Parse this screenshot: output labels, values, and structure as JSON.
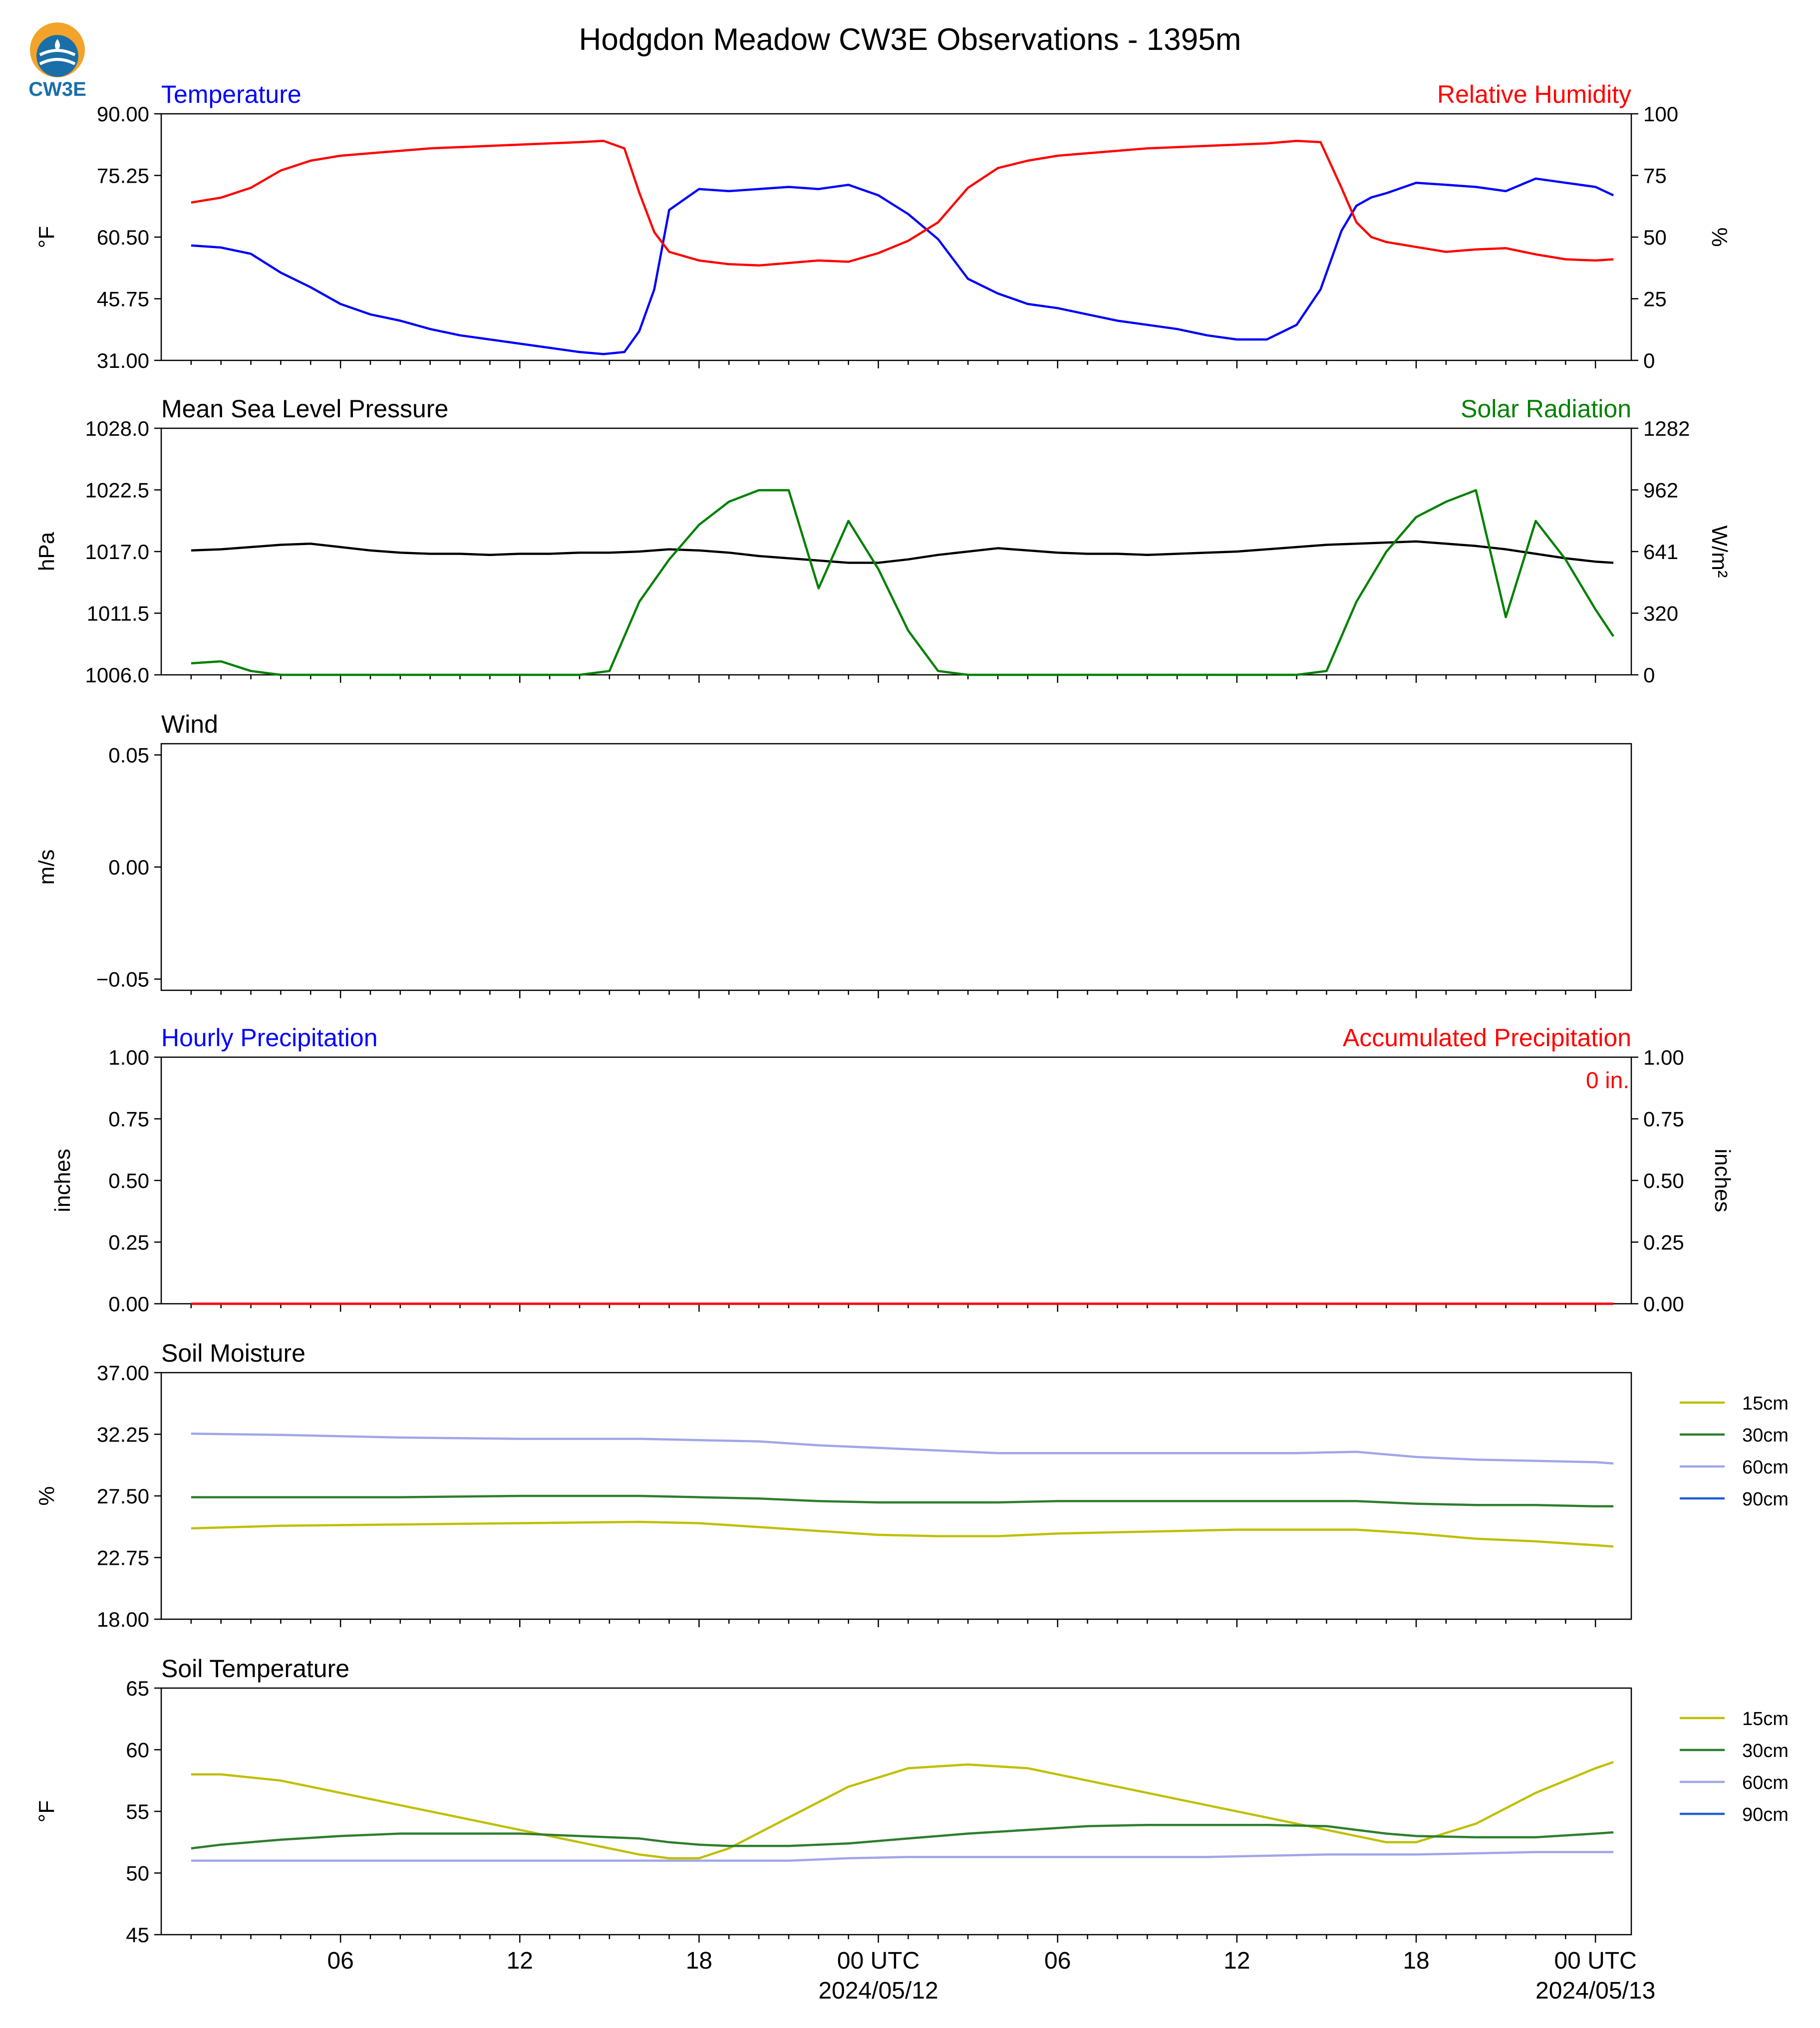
{
  "figure": {
    "title": "Hodgdon Meadow CW3E Observations - 1395m",
    "logo_text": "CW3E",
    "time_ticks": [
      "06",
      "12",
      "18",
      "00 UTC",
      "06",
      "12",
      "18",
      "00 UTC"
    ],
    "date_labels": [
      "2024/05/12",
      "2024/05/13"
    ]
  },
  "colors": {
    "temperature": "#0000ff",
    "humidity": "#ff0000",
    "pressure": "#000000",
    "solar": "#008000",
    "soil_15cm": "#bfbf00",
    "soil_30cm": "#2e7d2e",
    "soil_60cm": "#a0a6e6",
    "soil_90cm": "#1f5fd6"
  },
  "chart_data": [
    {
      "type": "line",
      "left_title": "Temperature",
      "right_title": "Relative Humidity",
      "ylabel": "°F",
      "ylabel_right": "%",
      "ylim": [
        31,
        90
      ],
      "ylim_right": [
        0,
        100
      ],
      "yticks": [
        "90.00",
        "75.25",
        "60.50",
        "45.75",
        "31.00"
      ],
      "yticks_right": [
        "100",
        "75",
        "50",
        "25",
        "0"
      ],
      "x_hours": [
        1,
        2,
        3,
        4,
        5,
        6,
        7,
        8,
        9,
        10,
        11,
        12,
        13,
        14,
        14.8,
        15.5,
        16,
        16.5,
        17,
        18,
        19,
        20,
        21,
        22,
        23,
        24,
        25,
        26,
        27,
        28,
        29,
        30,
        31,
        32,
        33,
        34,
        35,
        36,
        37,
        38,
        38.8,
        39.5,
        40,
        40.5,
        41,
        42,
        43,
        44,
        45,
        46,
        47,
        48,
        48.6
      ],
      "series": [
        {
          "name": "Temperature",
          "axis": "left",
          "values": [
            58.5,
            58,
            56.5,
            52,
            48.5,
            44.5,
            42,
            40.5,
            38.5,
            37,
            36,
            35,
            34,
            33,
            32.5,
            33,
            38,
            48,
            67,
            72,
            71.5,
            72,
            72.5,
            72,
            73,
            70.5,
            66,
            60,
            50.5,
            47,
            44.5,
            43.5,
            42,
            40.5,
            39.5,
            38.5,
            37,
            36,
            36,
            39.5,
            48,
            62,
            68,
            70,
            71,
            73.5,
            73,
            72.5,
            71.5,
            74.5,
            73.5,
            72.5,
            70.5
          ]
        },
        {
          "name": "Relative Humidity",
          "axis": "right",
          "values": [
            64,
            66,
            70,
            77,
            81,
            83,
            84,
            85,
            86,
            86.5,
            87,
            87.5,
            88,
            88.5,
            89,
            86,
            68,
            52,
            44,
            40.5,
            39,
            38.5,
            39.5,
            40.5,
            40,
            43.5,
            48.5,
            56,
            70,
            78,
            81,
            83,
            84,
            85,
            86,
            86.5,
            87,
            87.5,
            88,
            89,
            88.5,
            70,
            56,
            50,
            48,
            46,
            44,
            45,
            45.5,
            43,
            41,
            40.5,
            41
          ]
        }
      ]
    },
    {
      "type": "line",
      "left_title": "Mean Sea Level Pressure",
      "right_title": "Solar Radiation",
      "ylabel": "hPa",
      "ylabel_right": "W/m²",
      "ylim": [
        1006,
        1028
      ],
      "ylim_right": [
        0,
        1282
      ],
      "yticks": [
        "1028.0",
        "1022.5",
        "1017.0",
        "1011.5",
        "1006.0"
      ],
      "yticks_right": [
        "1282",
        "962",
        "641",
        "320",
        "0"
      ],
      "x_hours": [
        1,
        2,
        3,
        4,
        5,
        6,
        7,
        8,
        9,
        10,
        11,
        12,
        13,
        14,
        15,
        16,
        17,
        18,
        19,
        20,
        21,
        22,
        23,
        24,
        25,
        26,
        27,
        28,
        29,
        30,
        31,
        32,
        33,
        34,
        35,
        36,
        37,
        38,
        39,
        40,
        41,
        42,
        43,
        44,
        45,
        46,
        47,
        48,
        48.6
      ],
      "series": [
        {
          "name": "Mean Sea Level Pressure",
          "axis": "left",
          "values": [
            1017.1,
            1017.2,
            1017.4,
            1017.6,
            1017.7,
            1017.4,
            1017.1,
            1016.9,
            1016.8,
            1016.8,
            1016.7,
            1016.8,
            1016.8,
            1016.9,
            1016.9,
            1017.0,
            1017.2,
            1017.1,
            1016.9,
            1016.6,
            1016.4,
            1016.2,
            1016.0,
            1016.0,
            1016.3,
            1016.7,
            1017.0,
            1017.3,
            1017.1,
            1016.9,
            1016.8,
            1016.8,
            1016.7,
            1016.8,
            1016.9,
            1017.0,
            1017.2,
            1017.4,
            1017.6,
            1017.7,
            1017.8,
            1017.9,
            1017.7,
            1017.5,
            1017.2,
            1016.8,
            1016.4,
            1016.1,
            1016.0
          ]
        },
        {
          "name": "Solar Radiation",
          "axis": "right",
          "values": [
            60,
            70,
            20,
            0,
            0,
            0,
            0,
            0,
            0,
            0,
            0,
            0,
            0,
            0,
            20,
            380,
            600,
            780,
            900,
            960,
            960,
            450,
            800,
            550,
            230,
            20,
            0,
            0,
            0,
            0,
            0,
            0,
            0,
            0,
            0,
            0,
            0,
            0,
            20,
            380,
            640,
            820,
            900,
            960,
            300,
            800,
            600,
            340,
            200
          ]
        }
      ]
    },
    {
      "type": "line",
      "left_title": "Wind",
      "ylabel": "m/s",
      "ylim": [
        -0.055,
        0.055
      ],
      "yticks": [
        "0.05",
        "0.00",
        "−0.05"
      ],
      "series": []
    },
    {
      "type": "bar",
      "left_title": "Hourly Precipitation",
      "right_title": "Accumulated Precipitation",
      "ylabel": "inches",
      "ylabel_right": "inches",
      "ylim": [
        0,
        1
      ],
      "ylim_right": [
        0,
        1
      ],
      "yticks": [
        "1.00",
        "0.75",
        "0.50",
        "0.25",
        "0.00"
      ],
      "yticks_right": [
        "1.00",
        "0.75",
        "0.50",
        "0.25",
        "0.00"
      ],
      "annotation": "0 in.",
      "x_hours": [
        1,
        48.6
      ],
      "series": [
        {
          "name": "Hourly Precipitation",
          "axis": "left",
          "values": [
            0,
            0
          ]
        },
        {
          "name": "Accumulated Precipitation",
          "axis": "right",
          "values": [
            0,
            0
          ]
        }
      ]
    },
    {
      "type": "line",
      "left_title": "Soil Moisture",
      "ylabel": "%",
      "ylim": [
        18,
        37
      ],
      "yticks": [
        "37.00",
        "32.25",
        "27.50",
        "22.75",
        "18.00"
      ],
      "legend": [
        "15cm",
        "30cm",
        "60cm",
        "90cm"
      ],
      "x_hours": [
        1,
        4,
        8,
        12,
        16,
        18,
        20,
        22,
        24,
        26,
        28,
        30,
        32,
        34,
        36,
        38,
        40,
        42,
        44,
        46,
        48,
        48.6
      ],
      "series": [
        {
          "name": "15cm",
          "values": [
            25.0,
            25.2,
            25.3,
            25.4,
            25.5,
            25.4,
            25.1,
            24.8,
            24.5,
            24.4,
            24.4,
            24.6,
            24.7,
            24.8,
            24.9,
            24.9,
            24.9,
            24.6,
            24.2,
            24.0,
            23.7,
            23.6
          ]
        },
        {
          "name": "30cm",
          "values": [
            27.4,
            27.4,
            27.4,
            27.5,
            27.5,
            27.4,
            27.3,
            27.1,
            27.0,
            27.0,
            27.0,
            27.1,
            27.1,
            27.1,
            27.1,
            27.1,
            27.1,
            26.9,
            26.8,
            26.8,
            26.7,
            26.7
          ]
        },
        {
          "name": "60cm",
          "values": [
            32.3,
            32.2,
            32.0,
            31.9,
            31.9,
            31.8,
            31.7,
            31.4,
            31.2,
            31.0,
            30.8,
            30.8,
            30.8,
            30.8,
            30.8,
            30.8,
            30.9,
            30.5,
            30.3,
            30.2,
            30.1,
            30.0
          ]
        },
        {
          "name": "90cm",
          "values": []
        }
      ]
    },
    {
      "type": "line",
      "left_title": "Soil Temperature",
      "ylabel": "°F",
      "ylim": [
        45,
        65
      ],
      "yticks": [
        "65",
        "60",
        "55",
        "50",
        "45"
      ],
      "legend": [
        "15cm",
        "30cm",
        "60cm",
        "90cm"
      ],
      "x_hours": [
        1,
        2,
        4,
        6,
        8,
        10,
        12,
        14,
        16,
        17,
        18,
        19,
        21,
        23,
        25,
        27,
        29,
        31,
        33,
        35,
        37,
        39,
        40,
        41,
        42,
        44,
        46,
        48,
        48.6
      ],
      "series": [
        {
          "name": "15cm",
          "values": [
            58,
            58,
            57.5,
            56.5,
            55.5,
            54.5,
            53.5,
            52.5,
            51.5,
            51.2,
            51.2,
            52,
            54.5,
            57,
            58.5,
            58.8,
            58.5,
            57.5,
            56.5,
            55.5,
            54.5,
            53.5,
            53,
            52.5,
            52.5,
            54,
            56.5,
            58.5,
            59
          ]
        },
        {
          "name": "30cm",
          "values": [
            52,
            52.3,
            52.7,
            53,
            53.2,
            53.2,
            53.2,
            53,
            52.8,
            52.5,
            52.3,
            52.2,
            52.2,
            52.4,
            52.8,
            53.2,
            53.5,
            53.8,
            53.9,
            53.9,
            53.9,
            53.8,
            53.5,
            53.2,
            53,
            52.9,
            52.9,
            53.2,
            53.3
          ]
        },
        {
          "name": "60cm",
          "values": [
            51,
            51,
            51,
            51,
            51,
            51,
            51,
            51,
            51,
            51,
            51,
            51,
            51,
            51.2,
            51.3,
            51.3,
            51.3,
            51.3,
            51.3,
            51.3,
            51.4,
            51.5,
            51.5,
            51.5,
            51.5,
            51.6,
            51.7,
            51.7,
            51.7
          ]
        },
        {
          "name": "90cm",
          "values": []
        }
      ]
    }
  ]
}
